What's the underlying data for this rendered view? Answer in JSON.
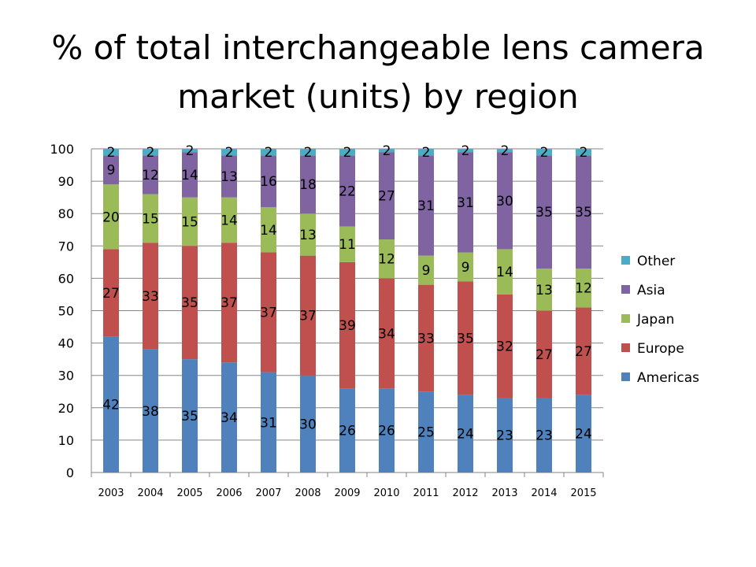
{
  "chart_data": {
    "type": "bar",
    "stacked": true,
    "title_lines": [
      "% of total interchangeable lens camera",
      "market (units) by region"
    ],
    "categories": [
      "2003",
      "2004",
      "2005",
      "2006",
      "2007",
      "2008",
      "2009",
      "2010",
      "2011",
      "2012",
      "2013",
      "2014",
      "2015"
    ],
    "series": [
      {
        "name": "Americas",
        "color": "#4F81BD",
        "values": [
          42,
          38,
          35,
          34,
          31,
          30,
          26,
          26,
          25,
          24,
          23,
          23,
          24
        ]
      },
      {
        "name": "Europe",
        "color": "#C0504D",
        "values": [
          27,
          33,
          35,
          37,
          37,
          37,
          39,
          34,
          33,
          35,
          32,
          27,
          27
        ]
      },
      {
        "name": "Japan",
        "color": "#9BBB59",
        "values": [
          20,
          15,
          15,
          14,
          14,
          13,
          11,
          12,
          9,
          9,
          14,
          13,
          12
        ]
      },
      {
        "name": "Asia",
        "color": "#8064A2",
        "values": [
          9,
          12,
          14,
          13,
          16,
          18,
          22,
          27,
          31,
          31,
          30,
          35,
          35
        ]
      },
      {
        "name": "Other",
        "color": "#4BACC6",
        "values": [
          2,
          2,
          2,
          2,
          2,
          2,
          2,
          2,
          2,
          2,
          2,
          2,
          2
        ]
      }
    ],
    "ylim": [
      0,
      100
    ],
    "yticks": [
      0,
      10,
      20,
      30,
      40,
      50,
      60,
      70,
      80,
      90,
      100
    ],
    "grid": true,
    "data_labels": true,
    "legend_placement": "right"
  }
}
